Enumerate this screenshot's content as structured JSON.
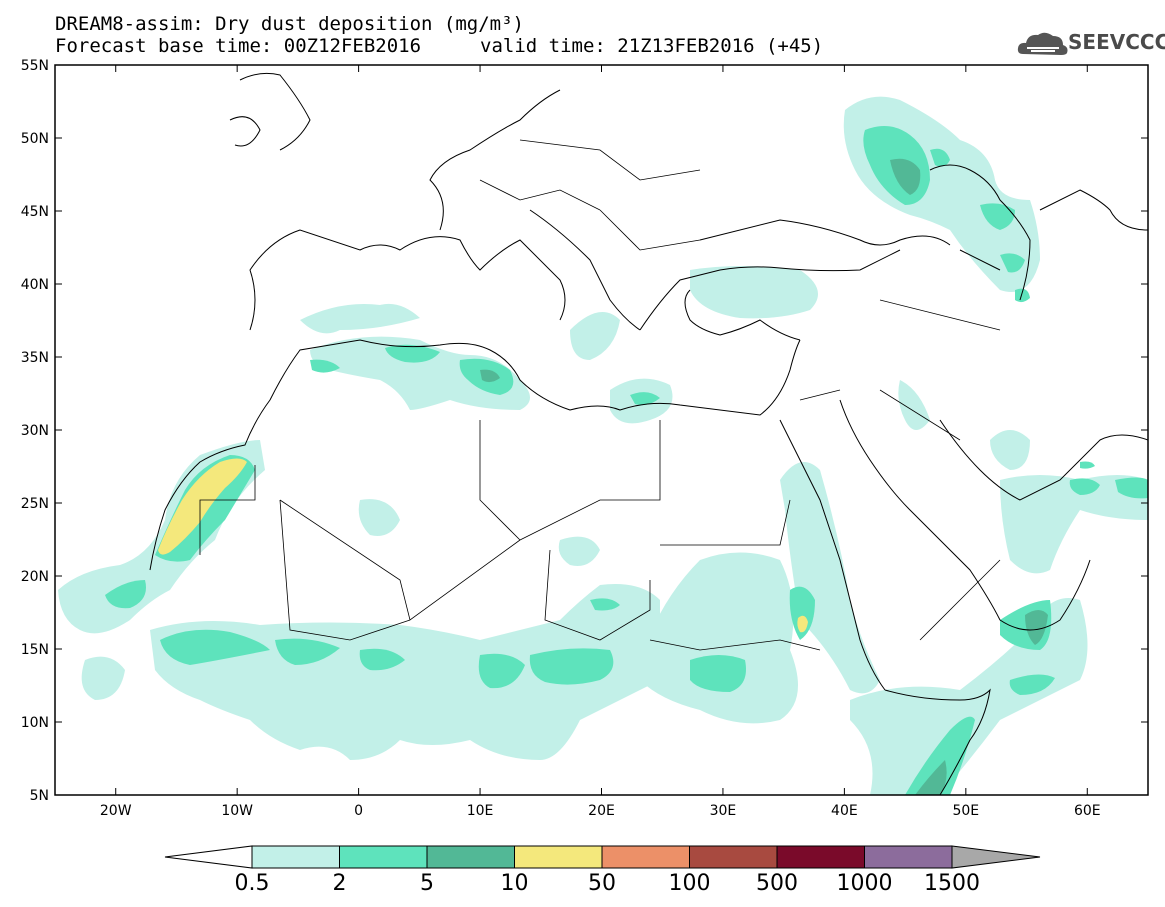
{
  "header": {
    "title_line1": "DREAM8-assim: Dry dust deposition (mg/m³)",
    "base_time": "Forecast base time: 00Z12FEB2016",
    "valid_time": "valid time: 21Z13FEB2016 (+45)",
    "logo_text": "SEEVCCC",
    "logo_icon": "cloud-icon"
  },
  "map": {
    "lon_range": [
      -25,
      65
    ],
    "lat_range": [
      5,
      55
    ],
    "lat_ticks": [
      {
        "value": 55,
        "label": "55N"
      },
      {
        "value": 50,
        "label": "50N"
      },
      {
        "value": 45,
        "label": "45N"
      },
      {
        "value": 40,
        "label": "40N"
      },
      {
        "value": 35,
        "label": "35N"
      },
      {
        "value": 30,
        "label": "30N"
      },
      {
        "value": 25,
        "label": "25N"
      },
      {
        "value": 20,
        "label": "20N"
      },
      {
        "value": 15,
        "label": "15N"
      },
      {
        "value": 10,
        "label": "10N"
      },
      {
        "value": 5,
        "label": "5N"
      }
    ],
    "lon_ticks": [
      {
        "value": -20,
        "label": "20W"
      },
      {
        "value": -10,
        "label": "10W"
      },
      {
        "value": 0,
        "label": "0"
      },
      {
        "value": 10,
        "label": "10E"
      },
      {
        "value": 20,
        "label": "20E"
      },
      {
        "value": 30,
        "label": "30E"
      },
      {
        "value": 40,
        "label": "40E"
      },
      {
        "value": 50,
        "label": "50E"
      },
      {
        "value": 60,
        "label": "60E"
      }
    ]
  },
  "legend": {
    "levels": [
      "0.5",
      "2",
      "5",
      "10",
      "50",
      "100",
      "500",
      "1000",
      "1500"
    ],
    "colors": [
      "#ffffff",
      "#c2f0e8",
      "#5ee3bc",
      "#52b896",
      "#f4e87c",
      "#ec9068",
      "#a84a40",
      "#7a0a2a",
      "#8c6c9c",
      "#a8a8a8"
    ]
  }
}
